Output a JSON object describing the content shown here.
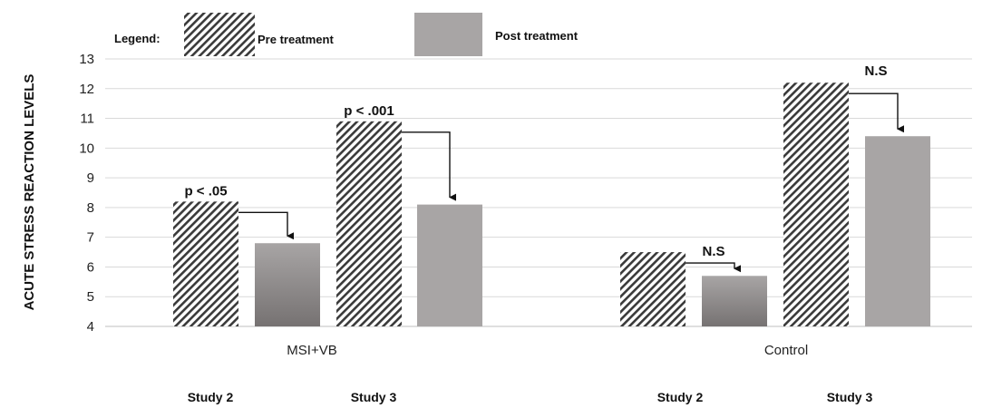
{
  "chart_data": {
    "type": "bar",
    "legend": {
      "title": "Legend:",
      "placement": "top-left",
      "entries": [
        {
          "name": "Pre treatment",
          "style": "hatched"
        },
        {
          "name": "Post treatment",
          "style": "solid-gray"
        }
      ]
    },
    "ylabel": "ACUTE STRESS REACTION LEVELS",
    "xlabel": "",
    "ylim": [
      4,
      13
    ],
    "yticks": [
      4,
      5,
      6,
      7,
      8,
      9,
      10,
      11,
      12,
      13
    ],
    "grid": true,
    "groups": [
      {
        "name": "MSI+VB",
        "studies": [
          {
            "name": "Study 2",
            "pre": 8.2,
            "post": 6.8,
            "annotation": "p < .05"
          },
          {
            "name": "Study 3",
            "pre": 10.9,
            "post": 8.1,
            "annotation": "p < .001"
          }
        ]
      },
      {
        "name": "Control",
        "studies": [
          {
            "name": "Study 2",
            "pre": 6.5,
            "post": 5.7,
            "annotation": "N.S"
          },
          {
            "name": "Study 3",
            "pre": 12.2,
            "post": 10.4,
            "annotation": "N.S"
          }
        ]
      }
    ],
    "colors": {
      "hatch_line": "#3a3a3a",
      "hatch_bg": "#ffffff",
      "post_fill": "#a8a5a5",
      "post_fill_dark": "#787474",
      "grid": "#d9d9d9",
      "axis": "#bfbfbf",
      "arrow": "#111111"
    }
  }
}
